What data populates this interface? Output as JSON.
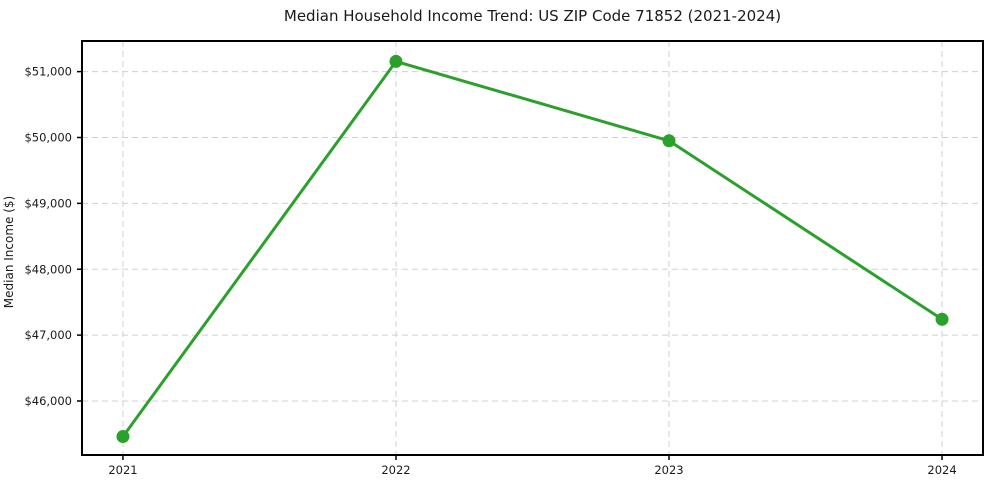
{
  "chart_data": {
    "type": "line",
    "title": "Median Household Income Trend: US ZIP Code 71852 (2021-2024)",
    "xlabel": "",
    "ylabel": "Median Income ($)",
    "x": [
      2021,
      2022,
      2023,
      2024
    ],
    "x_tick_labels": [
      "2021",
      "2022",
      "2023",
      "2024"
    ],
    "series": [
      {
        "name": "Median Household Income",
        "values": [
          45460,
          51155,
          49950,
          47240
        ],
        "color": "#2ca02c"
      }
    ],
    "y_ticks": [
      46000,
      47000,
      48000,
      49000,
      50000,
      51000
    ],
    "y_tick_labels": [
      "$46,000",
      "$47,000",
      "$48,000",
      "$49,000",
      "$50,000",
      "$51,000"
    ],
    "xlim": [
      2020.85,
      2024.15
    ],
    "ylim": [
      45180,
      51465
    ],
    "grid": true,
    "legend": "none",
    "colors": {
      "line": "#2ca02c",
      "marker": "#2ca02c",
      "grid": "#d0d0d0",
      "spine": "#000000",
      "text": "#1a1a1a",
      "background": "#ffffff"
    }
  }
}
